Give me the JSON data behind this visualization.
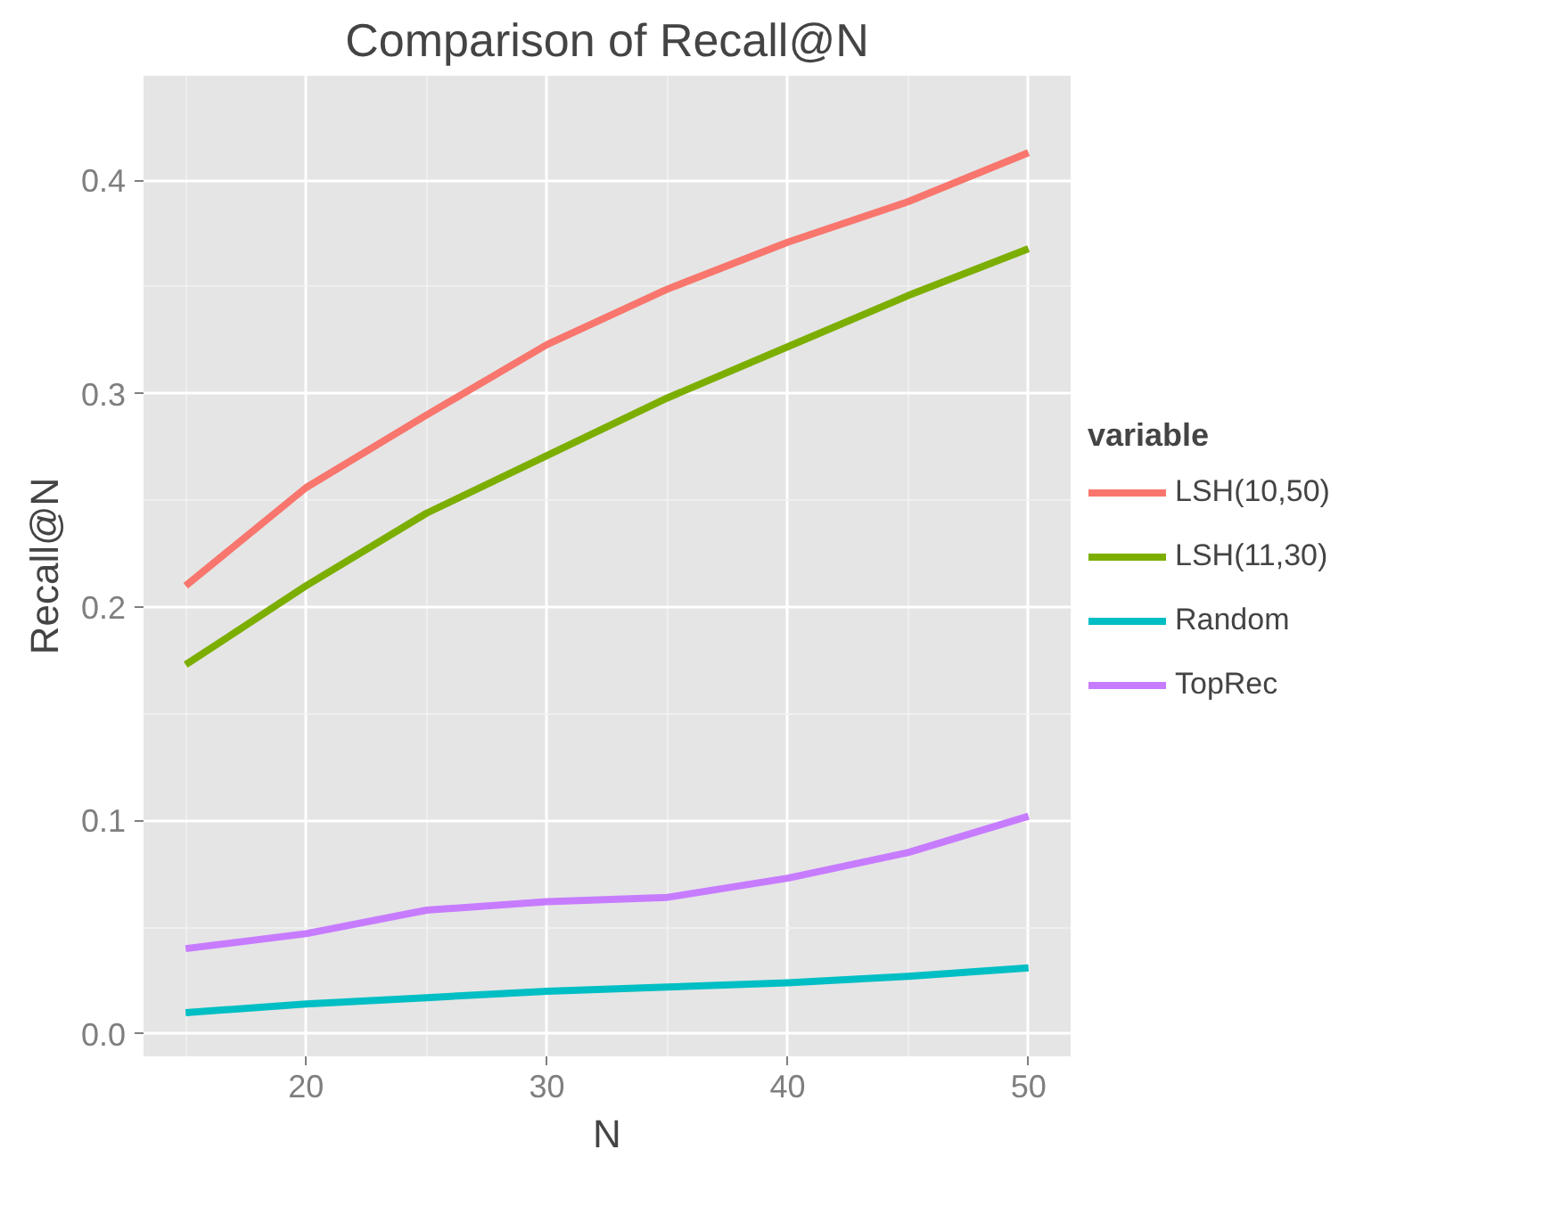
{
  "chart_data": {
    "type": "line",
    "title": "Comparison of Recall@N",
    "xlabel": "N",
    "ylabel": "Recall@N",
    "legend_title": "variable",
    "x": [
      15,
      20,
      25,
      30,
      35,
      40,
      45,
      50
    ],
    "series": [
      {
        "name": "LSH(10,50)",
        "color": "#f8766d",
        "values": [
          0.21,
          0.256,
          0.29,
          0.323,
          0.349,
          0.371,
          0.39,
          0.413
        ]
      },
      {
        "name": "LSH(11,30)",
        "color": "#7cae00",
        "values": [
          0.173,
          0.21,
          0.244,
          0.271,
          0.298,
          0.322,
          0.346,
          0.368
        ]
      },
      {
        "name": "Random",
        "color": "#00bfc4",
        "values": [
          0.01,
          0.014,
          0.017,
          0.02,
          0.022,
          0.024,
          0.027,
          0.031
        ]
      },
      {
        "name": "TopRec",
        "color": "#c77cff",
        "values": [
          0.04,
          0.047,
          0.058,
          0.062,
          0.064,
          0.073,
          0.085,
          0.102
        ]
      }
    ],
    "xlim": [
      13.25,
      51.75
    ],
    "ylim": [
      -0.0105,
      0.449
    ],
    "xticks": [
      20,
      30,
      40,
      50
    ],
    "yticks": [
      {
        "value": 0,
        "label": "0.0"
      },
      0.1,
      0.2,
      0.3,
      0.4
    ],
    "grid": true,
    "legend": "right",
    "marker": "none",
    "line_style": "solid"
  }
}
